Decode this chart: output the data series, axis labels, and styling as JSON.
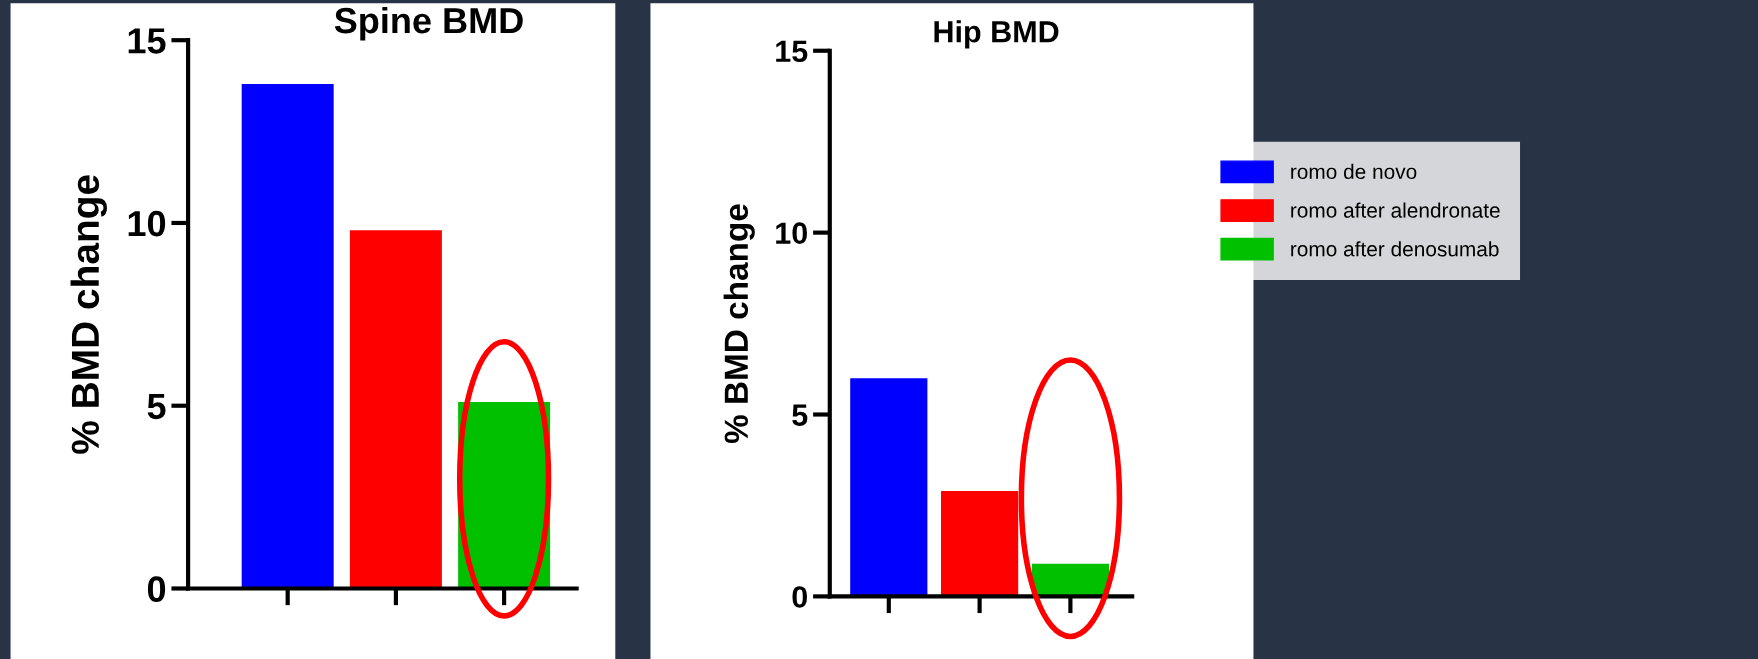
{
  "chart_data": [
    {
      "type": "bar",
      "title": "Spine BMD",
      "ylabel": "% BMD change",
      "categories": [
        null,
        null,
        null
      ],
      "series": [
        {
          "color": "#0000ff",
          "values": [
            13.8,
            null,
            null
          ]
        },
        {
          "color": "#ff0000",
          "values": [
            null,
            9.8,
            null
          ]
        },
        {
          "color": "#00c000",
          "values": [
            null,
            null,
            5.1
          ]
        }
      ],
      "ylim": [
        0,
        15
      ],
      "yticks": [
        0,
        5,
        10,
        15
      ],
      "grid": false
    },
    {
      "type": "bar",
      "title": "Hip BMD",
      "ylabel": "% BMD change",
      "categories": [
        null,
        null,
        null
      ],
      "series": [
        {
          "name": "romo de novo",
          "color": "#0000ff",
          "values": [
            6.0,
            null,
            null
          ]
        },
        {
          "name": "romo after alendronate",
          "color": "#ff0000",
          "values": [
            null,
            2.9,
            null
          ]
        },
        {
          "name": "romo after denosumab",
          "color": "#00c000",
          "values": [
            null,
            null,
            0.9
          ]
        }
      ],
      "ylim": [
        0,
        15
      ],
      "yticks": [
        0,
        5,
        10,
        15
      ],
      "grid": false,
      "legend": "right"
    }
  ]
}
